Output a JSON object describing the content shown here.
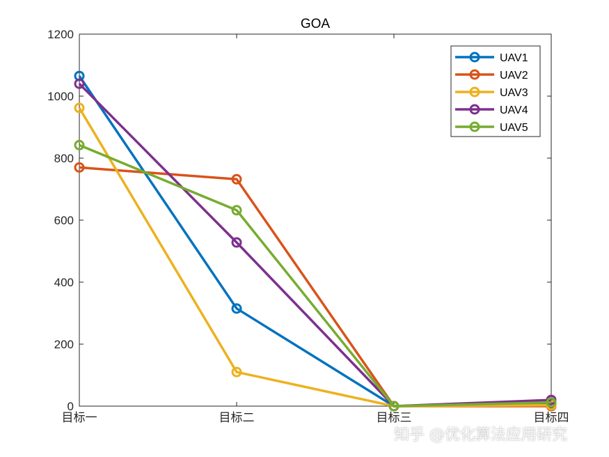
{
  "chart_data": {
    "type": "line",
    "title": "GOA",
    "xlabel": "",
    "ylabel": "",
    "categories": [
      "目标一",
      "目标二",
      "目标三",
      "目标四"
    ],
    "ylim": [
      0,
      1200
    ],
    "yticks": [
      0,
      200,
      400,
      600,
      800,
      1000,
      1200
    ],
    "grid": false,
    "legend_position": "top-right",
    "marker": "circle",
    "series": [
      {
        "name": "UAV1",
        "color": "#0072BD",
        "values": [
          1065,
          315,
          0,
          8
        ]
      },
      {
        "name": "UAV2",
        "color": "#D95319",
        "values": [
          770,
          732,
          0,
          0
        ]
      },
      {
        "name": "UAV3",
        "color": "#EDB120",
        "values": [
          962,
          110,
          0,
          3
        ]
      },
      {
        "name": "UAV4",
        "color": "#7E2F8E",
        "values": [
          1040,
          528,
          0,
          20
        ]
      },
      {
        "name": "UAV5",
        "color": "#77AC30",
        "values": [
          842,
          632,
          0,
          12
        ]
      }
    ]
  },
  "watermark": "知乎 @优化算法应用研究"
}
